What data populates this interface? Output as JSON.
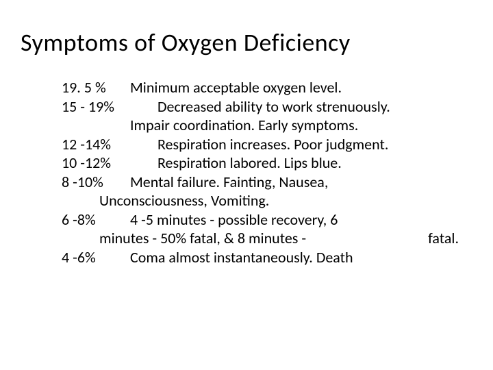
{
  "title": "Symptoms of Oxygen Deficiency",
  "rows": {
    "r1_pct": "19. 5 %",
    "r1_desc": "Minimum acceptable oxygen level.",
    "r2_pct": "15 - 19%",
    "r2_desc": "Decreased ability to work strenuously.",
    "r2b": "Impair coordination.  Early symptoms.",
    "r3_pct": "12 -14%",
    "r3_desc": "Respiration increases.  Poor judgment.",
    "r4_pct": "10 -12%",
    "r4_desc": "Respiration labored.  Lips blue.",
    "r5_pct": "8 -10%",
    "r5_desc": "Mental failure.  Fainting, Nausea,",
    "r5b": "Unconsciousness, Vomiting.",
    "r6_pct": "6 -8%",
    "r6_desc": "4 -5 minutes - possible recovery, 6",
    "r6b": "minutes - 50% fatal, & 8 minutes -",
    "r6_frag": "fatal.",
    "r7_pct": "4 -6%",
    "r7_desc": "Coma almost instantaneously.  Death"
  }
}
